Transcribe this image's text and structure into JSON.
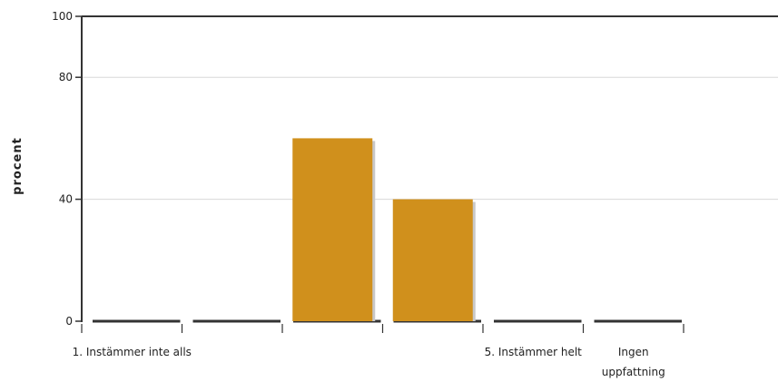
{
  "chart_data": {
    "type": "bar",
    "ylabel": "procent",
    "xlabel": "",
    "ylim": [
      0,
      100
    ],
    "yticks": [
      0,
      40,
      80,
      100
    ],
    "grid": true,
    "categories": [
      "1. Instämmer inte alls",
      "",
      "",
      "",
      "5. Instämmer helt",
      "Ingen uppfattning"
    ],
    "category_labels_shown": [
      {
        "index": 0,
        "lines": [
          "1. Instämmer inte alls"
        ]
      },
      {
        "index": 4,
        "lines": [
          "5. Instämmer helt"
        ]
      },
      {
        "index": 5,
        "lines": [
          "Ingen",
          "uppfattning"
        ]
      }
    ],
    "values": [
      0,
      0,
      60,
      40,
      0,
      0
    ],
    "bar_color": "#D0901C",
    "shadow_color": "#c8c8c8"
  }
}
